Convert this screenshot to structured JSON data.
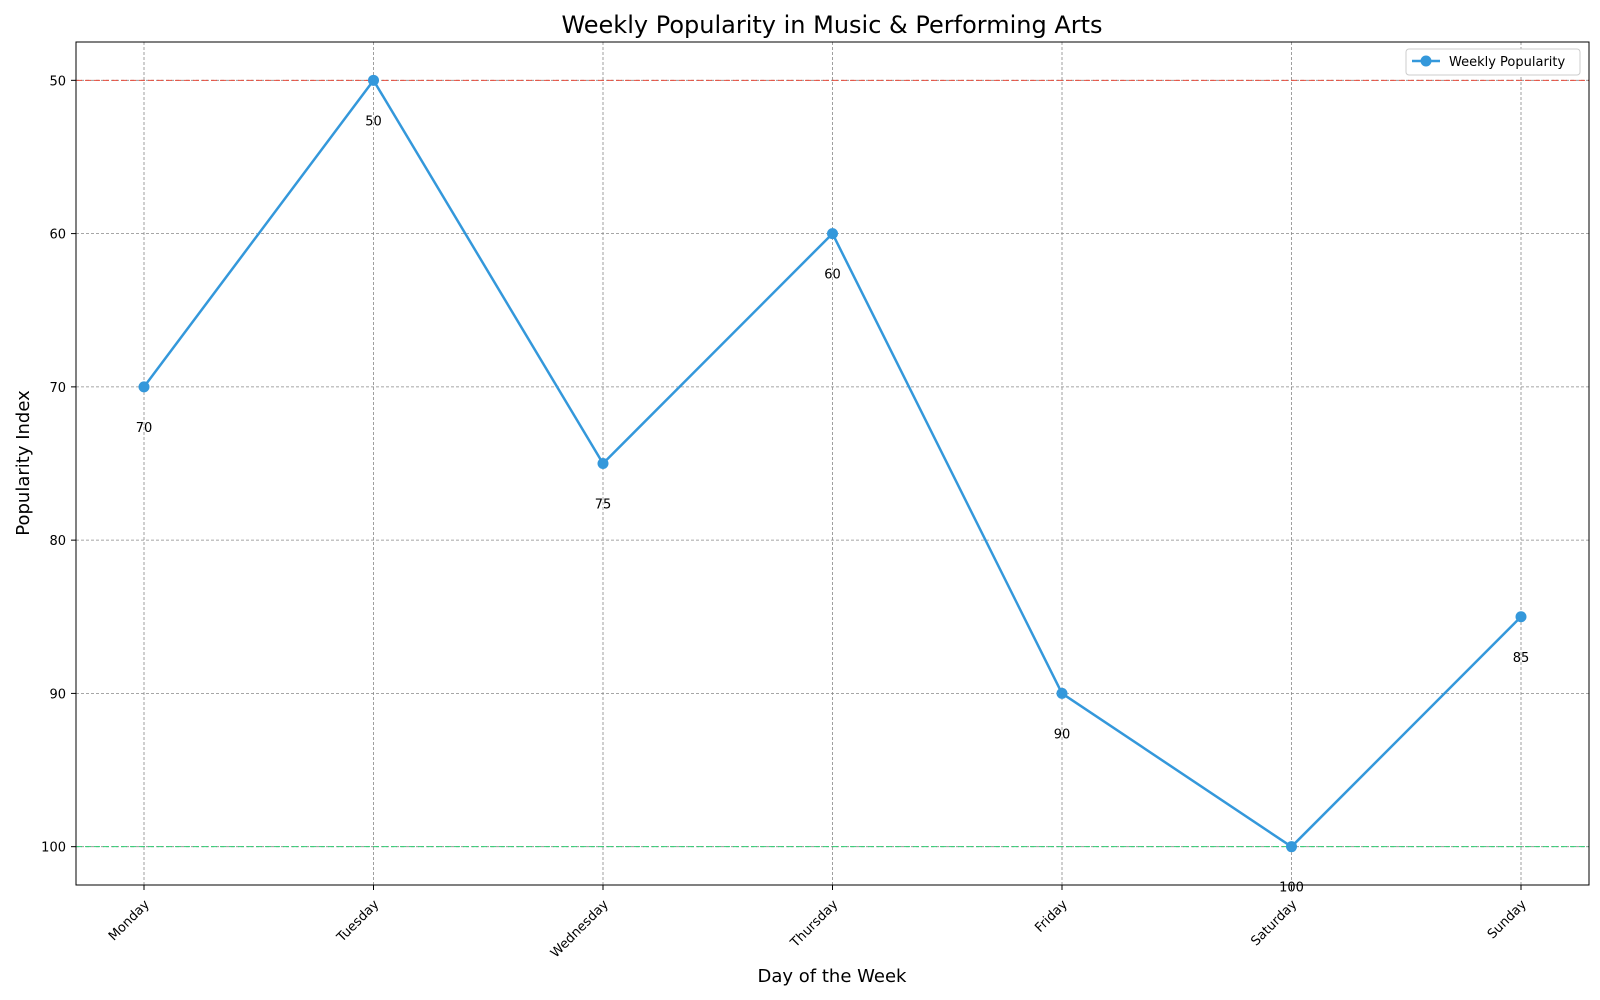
{
  "chart_data": {
    "type": "line",
    "title": "Weekly Popularity in Music & Performing Arts",
    "xlabel": "Day of the Week",
    "ylabel": "Popularity Index",
    "categories": [
      "Monday",
      "Tuesday",
      "Wednesday",
      "Thursday",
      "Friday",
      "Saturday",
      "Sunday"
    ],
    "series": [
      {
        "name": "Weekly Popularity",
        "values": [
          70,
          50,
          75,
          60,
          90,
          100,
          85
        ],
        "color": "#3498db"
      }
    ],
    "y_ticks": [
      50,
      60,
      70,
      80,
      90,
      100
    ],
    "ylim": [
      102.5,
      47.5
    ],
    "y_inverted": true,
    "reference_lines": [
      {
        "value": 50,
        "color": "#e74c3c",
        "style": "dashed"
      },
      {
        "value": 100,
        "color": "#2ecc71",
        "style": "dashed"
      }
    ],
    "grid": true,
    "legend_placement": "top-right"
  }
}
